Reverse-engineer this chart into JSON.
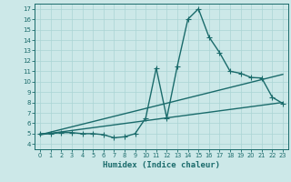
{
  "xlabel": "Humidex (Indice chaleur)",
  "xlim": [
    -0.5,
    23.5
  ],
  "ylim": [
    3.5,
    17.5
  ],
  "xticks": [
    0,
    1,
    2,
    3,
    4,
    5,
    6,
    7,
    8,
    9,
    10,
    11,
    12,
    13,
    14,
    15,
    16,
    17,
    18,
    19,
    20,
    21,
    22,
    23
  ],
  "yticks": [
    4,
    5,
    6,
    7,
    8,
    9,
    10,
    11,
    12,
    13,
    14,
    15,
    16,
    17
  ],
  "bg_color": "#cce8e8",
  "grid_color": "#aad4d4",
  "line_color": "#1a6b6b",
  "curve1_x": [
    0,
    1,
    2,
    3,
    4,
    5,
    6,
    7,
    8,
    9,
    10,
    11,
    12,
    13,
    14,
    15,
    16,
    17,
    18,
    19,
    20,
    21,
    22,
    23
  ],
  "curve1_y": [
    5.0,
    5.0,
    5.1,
    5.1,
    5.0,
    5.0,
    4.9,
    4.6,
    4.7,
    5.0,
    6.5,
    11.3,
    6.5,
    11.5,
    16.0,
    17.0,
    14.3,
    12.8,
    11.0,
    10.8,
    10.4,
    10.35,
    8.5,
    7.9
  ],
  "curve2_x": [
    0,
    23
  ],
  "curve2_y": [
    4.9,
    10.7
  ],
  "curve3_x": [
    0,
    23
  ],
  "curve3_y": [
    4.9,
    8.0
  ],
  "markersize": 2.5,
  "linewidth": 1.0
}
